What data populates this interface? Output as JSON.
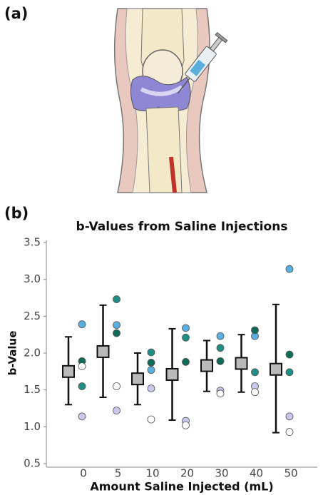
{
  "panel_labels": [
    "(a)",
    "(b)"
  ],
  "chart_data": {
    "type": "scatter",
    "title": "b-Values from Saline Injections",
    "x_label": "Amount Saline Injected (mL)",
    "y_label": "b-Value",
    "categories": [
      "0",
      "5",
      "10",
      "20",
      "30",
      "40",
      "50"
    ],
    "ylim": [
      0.5,
      3.5
    ],
    "yticks": [
      {
        "value": 0.5,
        "label": "0.5"
      },
      {
        "value": 1.0,
        "label": "1.0"
      },
      {
        "value": 1.5,
        "label": "1.5"
      },
      {
        "value": 2.0,
        "label": "2.0"
      },
      {
        "value": 2.5,
        "label": "2.5"
      },
      {
        "value": 3.0,
        "label": "3.0"
      },
      {
        "value": 3.5,
        "label": "3.5"
      }
    ],
    "summary": {
      "color": "#b9b9b9",
      "values": [
        1.75,
        2.02,
        1.65,
        1.71,
        1.83,
        1.86,
        1.78
      ],
      "lower": [
        1.3,
        1.4,
        1.3,
        1.09,
        1.48,
        1.47,
        0.92
      ],
      "upper": [
        2.22,
        2.65,
        2.0,
        2.33,
        2.17,
        2.25,
        2.66
      ]
    },
    "series": [
      {
        "color": "#5aaee0",
        "values": [
          2.39,
          2.38,
          1.77,
          2.34,
          2.23,
          2.23,
          3.14
        ]
      },
      {
        "color": "#1f8f86",
        "values": [
          1.55,
          2.73,
          2.01,
          2.21,
          2.07,
          1.74,
          1.74
        ]
      },
      {
        "color": "#0f6b58",
        "values": [
          1.89,
          2.27,
          1.87,
          1.88,
          1.89,
          2.31,
          1.98
        ]
      },
      {
        "color": "#c8c8ec",
        "values": [
          1.14,
          1.22,
          1.52,
          1.08,
          1.49,
          1.55,
          1.14
        ]
      },
      {
        "color": "#ffffff",
        "values": [
          1.82,
          1.55,
          1.1,
          1.02,
          1.45,
          1.47,
          0.93
        ]
      }
    ]
  }
}
